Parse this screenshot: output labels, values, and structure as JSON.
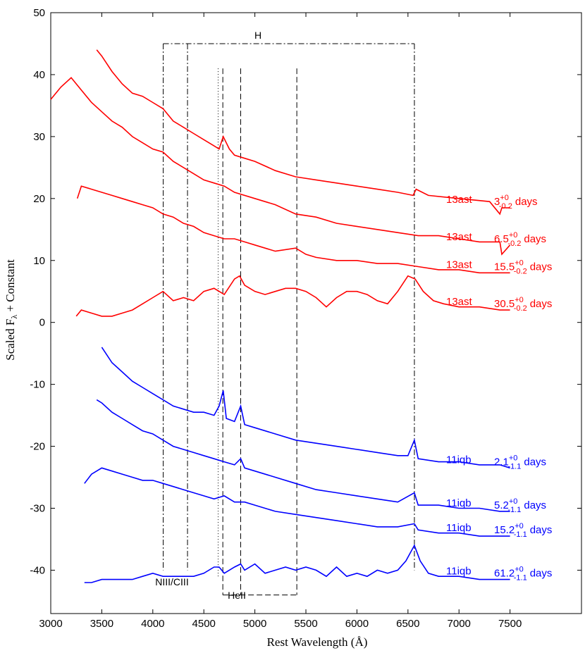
{
  "chart_data": {
    "type": "line",
    "xlabel": "Rest Wavelength (Å)",
    "ylabel": "Scaled F",
    "ylabel_sub": "λ",
    "ylabel_tail": " + Constant",
    "xlim": [
      3000,
      8200
    ],
    "ylim": [
      -47,
      50
    ],
    "xticks": [
      3000,
      3500,
      4000,
      4500,
      5000,
      5500,
      6000,
      6500,
      7000,
      7500
    ],
    "yticks": [
      -40,
      -30,
      -20,
      -10,
      0,
      10,
      20,
      30,
      40,
      50
    ],
    "grid": false,
    "colors": {
      "13ast": "#ff0000",
      "11iqb": "#0000ff"
    },
    "series": [
      {
        "name": "13ast",
        "group": "13ast",
        "epoch": "3",
        "sup": "+0",
        "sub": "-0.2",
        "unit": "days",
        "x": [
          3450,
          3500,
          3600,
          3700,
          3800,
          3900,
          4000,
          4100,
          4200,
          4300,
          4400,
          4500,
          4600,
          4650,
          4690,
          4750,
          4800,
          4900,
          5000,
          5200,
          5400,
          5600,
          5800,
          6000,
          6200,
          6400,
          6550,
          6580,
          6700,
          7000,
          7300,
          7400,
          7420,
          7500
        ],
        "y": [
          44,
          43,
          40.5,
          38.5,
          37,
          36.5,
          35.5,
          34.5,
          32.5,
          31.5,
          30.5,
          29.5,
          28.5,
          28,
          30,
          28,
          27,
          26.5,
          26,
          24.5,
          23.5,
          23,
          22.5,
          22,
          21.5,
          21,
          20.5,
          21.5,
          20.5,
          20,
          19.5,
          17.5,
          18.5,
          18.5
        ]
      },
      {
        "name": "13ast",
        "group": "13ast",
        "epoch": "6.5",
        "sup": "+0",
        "sub": "-0.2",
        "unit": "days",
        "x": [
          3000,
          3100,
          3200,
          3300,
          3400,
          3500,
          3600,
          3700,
          3800,
          3900,
          4000,
          4100,
          4200,
          4300,
          4400,
          4500,
          4600,
          4700,
          4800,
          5000,
          5200,
          5400,
          5600,
          5800,
          6000,
          6200,
          6400,
          6600,
          6800,
          7000,
          7200,
          7400,
          7420,
          7500
        ],
        "y": [
          36,
          38,
          39.5,
          37.5,
          35.5,
          34,
          32.5,
          31.5,
          30,
          29,
          28,
          27.5,
          26,
          25,
          24,
          23,
          22.5,
          22,
          21,
          20,
          19,
          17.5,
          17,
          16,
          15.5,
          15,
          14.5,
          14,
          14,
          13.5,
          13,
          13,
          11,
          12.5
        ]
      },
      {
        "name": "13ast",
        "group": "13ast",
        "epoch": "15.5",
        "sup": "+0",
        "sub": "-0.2",
        "unit": "days",
        "x": [
          3260,
          3300,
          3400,
          3500,
          3600,
          3700,
          3800,
          3900,
          4000,
          4100,
          4200,
          4300,
          4400,
          4500,
          4600,
          4700,
          4800,
          4900,
          5000,
          5200,
          5400,
          5500,
          5600,
          5800,
          6000,
          6200,
          6400,
          6600,
          6800,
          7000,
          7200,
          7400,
          7500
        ],
        "y": [
          20,
          22,
          21.5,
          21,
          20.5,
          20,
          19.5,
          19,
          18.5,
          17.5,
          17,
          16,
          15.5,
          14.5,
          14,
          13.5,
          13.5,
          13,
          12.5,
          11.5,
          12,
          11,
          10.5,
          10,
          10,
          9.5,
          9.5,
          9,
          8.5,
          8.5,
          8,
          8,
          8
        ]
      },
      {
        "name": "13ast",
        "group": "13ast",
        "epoch": "30.5",
        "sup": "+0",
        "sub": "-0.2",
        "unit": "days",
        "x": [
          3250,
          3300,
          3400,
          3500,
          3600,
          3700,
          3800,
          3900,
          4000,
          4100,
          4200,
          4300,
          4400,
          4500,
          4600,
          4700,
          4800,
          4850,
          4900,
          5000,
          5100,
          5200,
          5300,
          5400,
          5500,
          5600,
          5700,
          5800,
          5900,
          6000,
          6100,
          6200,
          6300,
          6400,
          6500,
          6570,
          6650,
          6750,
          6850,
          7000,
          7200,
          7400,
          7500
        ],
        "y": [
          1,
          2,
          1.5,
          1,
          1,
          1.5,
          2,
          3,
          4,
          5,
          3.5,
          4,
          3.5,
          5,
          5.5,
          4.5,
          7,
          7.5,
          6,
          5,
          4.5,
          5,
          5.5,
          5.5,
          5,
          4,
          2.5,
          4,
          5,
          5,
          4.5,
          3.5,
          3,
          5,
          7.5,
          7,
          5,
          3.5,
          3,
          2.5,
          2.5,
          2,
          2
        ]
      },
      {
        "name": "11iqb",
        "group": "11iqb",
        "epoch": "2.1",
        "sup": "+0",
        "sub": "-1.1",
        "unit": "days",
        "x": [
          3500,
          3600,
          3700,
          3800,
          3900,
          4000,
          4100,
          4200,
          4300,
          4400,
          4500,
          4600,
          4650,
          4690,
          4720,
          4800,
          4861,
          4900,
          5000,
          5200,
          5400,
          5600,
          5800,
          6000,
          6200,
          6400,
          6500,
          6563,
          6600,
          6800,
          7000,
          7200,
          7400,
          7500
        ],
        "y": [
          -4,
          -6.5,
          -8,
          -9.5,
          -10.5,
          -11.5,
          -12.5,
          -13.5,
          -14,
          -14.5,
          -14.5,
          -15,
          -13.5,
          -11,
          -15.5,
          -16,
          -13.5,
          -16.5,
          -17,
          -18,
          -19,
          -19.5,
          -20,
          -20.5,
          -21,
          -21.5,
          -21.5,
          -19,
          -22,
          -22.5,
          -22.5,
          -23,
          -23,
          -23.5
        ]
      },
      {
        "name": "11iqb",
        "group": "11iqb",
        "epoch": "5.2",
        "sup": "+0",
        "sub": "-1.1",
        "unit": "days",
        "x": [
          3450,
          3500,
          3600,
          3700,
          3800,
          3900,
          4000,
          4100,
          4200,
          4300,
          4400,
          4500,
          4600,
          4700,
          4800,
          4861,
          4900,
          5000,
          5200,
          5400,
          5600,
          5800,
          6000,
          6200,
          6400,
          6563,
          6600,
          6800,
          7000,
          7200,
          7400,
          7500
        ],
        "y": [
          -12.5,
          -13,
          -14.5,
          -15.5,
          -16.5,
          -17.5,
          -18,
          -19,
          -20,
          -20.5,
          -21,
          -21.5,
          -22,
          -22.5,
          -23,
          -22,
          -23.5,
          -24,
          -25,
          -26,
          -27,
          -27.5,
          -28,
          -28.5,
          -29,
          -27.5,
          -29.5,
          -29.5,
          -30,
          -30,
          -30.5,
          -30.5
        ]
      },
      {
        "name": "11iqb",
        "group": "11iqb",
        "epoch": "15.2",
        "sup": "+0",
        "sub": "-1.1",
        "unit": "days",
        "x": [
          3330,
          3400,
          3500,
          3600,
          3700,
          3800,
          3900,
          4000,
          4100,
          4200,
          4300,
          4400,
          4500,
          4600,
          4700,
          4800,
          4900,
          5000,
          5200,
          5400,
          5600,
          5800,
          6000,
          6200,
          6400,
          6563,
          6600,
          6800,
          7000,
          7200,
          7400,
          7500
        ],
        "y": [
          -26,
          -24.5,
          -23.5,
          -24,
          -24.5,
          -25,
          -25.5,
          -25.5,
          -26,
          -26.5,
          -27,
          -27.5,
          -28,
          -28.5,
          -28,
          -29,
          -29,
          -29.5,
          -30.5,
          -31,
          -31.5,
          -32,
          -32.5,
          -33,
          -33,
          -32.5,
          -33.5,
          -34,
          -34,
          -34.5,
          -34.5,
          -34.5
        ]
      },
      {
        "name": "11iqb",
        "group": "11iqb",
        "epoch": "61.2",
        "sup": "+0",
        "sub": "-1.1",
        "unit": "days",
        "x": [
          3330,
          3400,
          3500,
          3600,
          3700,
          3800,
          3900,
          4000,
          4100,
          4200,
          4300,
          4400,
          4500,
          4600,
          4650,
          4700,
          4800,
          4861,
          4900,
          5000,
          5100,
          5200,
          5300,
          5400,
          5500,
          5600,
          5700,
          5800,
          5900,
          6000,
          6100,
          6200,
          6300,
          6400,
          6480,
          6563,
          6620,
          6700,
          6800,
          6900,
          7000,
          7200,
          7400,
          7500
        ],
        "y": [
          -42,
          -42,
          -41.5,
          -41.5,
          -41.5,
          -41.5,
          -41,
          -40.5,
          -41,
          -41,
          -41,
          -41,
          -40.5,
          -39.5,
          -39.5,
          -40.5,
          -39.5,
          -39,
          -40,
          -39,
          -40.5,
          -40,
          -39.5,
          -40,
          -39.5,
          -40,
          -41,
          -39.5,
          -41,
          -40.5,
          -41,
          -40,
          -40.5,
          -40,
          -38.5,
          -36,
          -38.5,
          -40.5,
          -41,
          -41,
          -41,
          -41.5,
          -41.5,
          -41.5
        ]
      }
    ],
    "annotations": [
      {
        "label": "H",
        "kind": "dash-dot"
      },
      {
        "label": "HeII",
        "kind": "dashed"
      },
      {
        "label": "NIII/CIII",
        "kind": "dotted"
      }
    ],
    "line_markers": {
      "H_lines": [
        4102,
        4340,
        6563
      ],
      "H_box_top": 45,
      "HeII_lines": [
        4686,
        4861,
        5411
      ],
      "HeII_box_bottom": -44,
      "NIII_line": 4640,
      "NIII_top": 41
    }
  }
}
